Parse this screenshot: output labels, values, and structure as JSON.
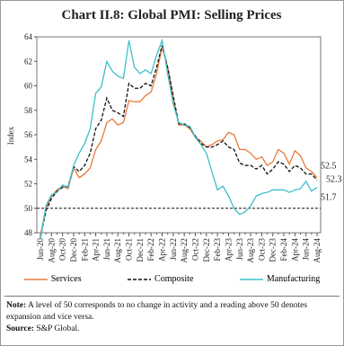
{
  "chart_data": {
    "type": "line",
    "title": "Chart II.8: Global PMI: Selling Prices",
    "y_label": "Index",
    "categories": [
      "Jun-20",
      null,
      "Aug-20",
      null,
      "Oct-20",
      null,
      "Dec-20",
      null,
      "Feb-21",
      null,
      "Apr-21",
      null,
      "Jun-21",
      null,
      "Aug-21",
      null,
      "Oct-21",
      null,
      "Dec-21",
      null,
      "Feb-22",
      null,
      "Apr-22",
      null,
      "Jun-22",
      null,
      "Aug-22",
      null,
      "Oct-22",
      null,
      "Dec-22",
      null,
      "Feb-23",
      null,
      "Apr-23",
      null,
      "Jun-23",
      null,
      "Aug-23",
      null,
      "Oct-23",
      null,
      "Dec-23",
      null,
      "Feb-24",
      null,
      "Apr-24",
      null,
      "Jun-24",
      null,
      "Aug-24"
    ],
    "series": [
      {
        "name": "Services",
        "color": "#e8793a",
        "dashed": false,
        "values": [
          47.8,
          50.0,
          51.0,
          51.5,
          51.8,
          51.6,
          53.3,
          52.5,
          52.8,
          53.3,
          54.8,
          55.5,
          57.0,
          57.3,
          56.8,
          57.0,
          58.8,
          58.7,
          58.7,
          59.2,
          59.5,
          61.0,
          63.2,
          61.5,
          59.0,
          56.8,
          56.8,
          56.5,
          55.8,
          55.5,
          55.0,
          55.2,
          55.5,
          55.6,
          56.2,
          56.0,
          54.8,
          54.8,
          54.5,
          54.0,
          54.2,
          53.5,
          53.8,
          54.8,
          54.5,
          53.6,
          54.7,
          54.3,
          53.3,
          53.0,
          52.5
        ]
      },
      {
        "name": "Composite",
        "color": "#111111",
        "dashed": true,
        "values": [
          47.6,
          49.8,
          50.8,
          51.4,
          51.7,
          51.8,
          53.4,
          53.0,
          53.5,
          54.5,
          56.5,
          57.2,
          59.0,
          58.0,
          57.8,
          57.5,
          60.2,
          59.8,
          59.8,
          60.2,
          60.0,
          61.5,
          63.3,
          61.5,
          59.2,
          56.9,
          56.9,
          56.6,
          55.9,
          55.3,
          55.0,
          55.0,
          55.2,
          55.5,
          55.0,
          54.8,
          53.7,
          53.5,
          53.5,
          53.2,
          53.5,
          52.8,
          53.2,
          53.8,
          53.6,
          53.0,
          53.5,
          53.3,
          52.8,
          52.8,
          52.3
        ]
      },
      {
        "name": "Manufacturing",
        "color": "#3cc0c8",
        "dashed": false,
        "values": [
          47.5,
          50.2,
          51.1,
          51.3,
          51.9,
          51.7,
          53.5,
          54.5,
          55.3,
          56.5,
          59.4,
          59.9,
          62.0,
          61.2,
          60.8,
          60.6,
          63.7,
          61.5,
          61.0,
          61.3,
          61.0,
          62.5,
          63.7,
          61.0,
          58.5,
          57.0,
          56.8,
          56.7,
          55.8,
          55.2,
          54.5,
          53.0,
          51.5,
          51.8,
          51.0,
          50.0,
          49.5,
          49.7,
          50.2,
          51.0,
          51.2,
          51.3,
          51.5,
          51.5,
          51.5,
          51.3,
          51.5,
          51.6,
          52.2,
          51.4,
          51.7
        ]
      }
    ],
    "ylim": [
      48,
      64
    ],
    "yticks": [
      48,
      50,
      52,
      54,
      56,
      58,
      60,
      62,
      64
    ],
    "reference_line": 50,
    "legend": "bottom"
  },
  "note_label": "Note:",
  "note": "A level of 50 corresponds to no change in activity and a reading above 50 denotes expansion and vice versa.",
  "source_label": "Source:",
  "source": "S&P Global."
}
